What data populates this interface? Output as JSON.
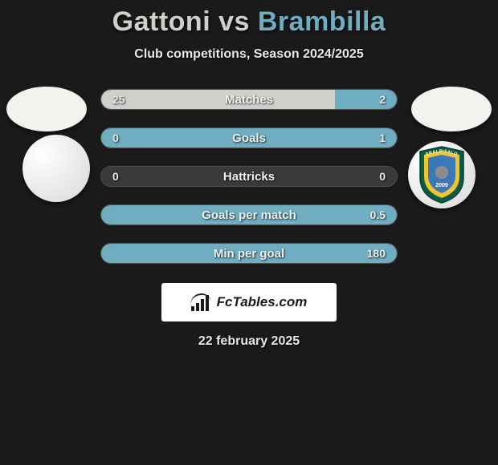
{
  "title": {
    "player1": "Gattoni",
    "vs": "vs",
    "player2": "Brambilla",
    "player1_color": "#d0d0cb",
    "player2_color": "#6faec1"
  },
  "subtitle": "Club competitions, Season 2024/2025",
  "avatars": {
    "left_bg": "#f2f2ef",
    "right_bg": "#f2f2ef"
  },
  "club_badges": {
    "left_bg": "#f0f0ec",
    "right": {
      "outer": "#0b5b46",
      "mid": "#f2c430",
      "inner": "#3b78b8",
      "text_top": "ERALPISALO",
      "year": "2009"
    }
  },
  "stats": {
    "left_color": "#d0d0cb",
    "right_color": "#6faec1",
    "neutral_bg": "#3a3a3a",
    "rows": [
      {
        "label": "Matches",
        "left": "25",
        "right": "2",
        "left_pct": 79,
        "right_pct": 21,
        "left_fill": true,
        "right_fill": true
      },
      {
        "label": "Goals",
        "left": "0",
        "right": "1",
        "left_pct": 0,
        "right_pct": 100,
        "left_fill": false,
        "right_fill": true
      },
      {
        "label": "Hattricks",
        "left": "0",
        "right": "0",
        "left_pct": 0,
        "right_pct": 0,
        "left_fill": false,
        "right_fill": false
      },
      {
        "label": "Goals per match",
        "left": "",
        "right": "0.5",
        "left_pct": 0,
        "right_pct": 100,
        "left_fill": false,
        "right_fill": true
      },
      {
        "label": "Min per goal",
        "left": "",
        "right": "180",
        "left_pct": 0,
        "right_pct": 100,
        "left_fill": false,
        "right_fill": true
      }
    ]
  },
  "brand": {
    "text": "FcTables.com",
    "box_bg": "#ffffff",
    "text_color": "#1a1a1a"
  },
  "date": "22 february 2025",
  "page_bg": "#1a1a1a"
}
